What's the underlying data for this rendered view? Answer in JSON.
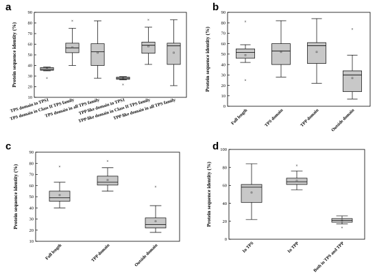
{
  "charts": [
    {
      "id": "a",
      "letter": "a",
      "type": "box",
      "ylabel": "Protein sequence identity (%)",
      "ylim": [
        10,
        90
      ],
      "yticks": [
        10,
        20,
        30,
        40,
        50,
        60,
        70,
        80,
        90
      ],
      "label_style": "rotated",
      "categories": [
        "TPS domain in TPS1",
        "TPS domain in Class II TPS family",
        "TPS domain in all TPS family",
        "TPP like domain in TPS1",
        "TPP like domain in Class II TPS family",
        "TPP like domain in all TPS family"
      ],
      "boxes": [
        {
          "q1": 35.5,
          "median": 36.5,
          "q3": 38,
          "min": 35,
          "max": 38.5,
          "mean": 37,
          "outliers": [
            28
          ]
        },
        {
          "q1": 52,
          "median": 56.5,
          "q3": 61,
          "min": 40,
          "max": 75,
          "mean": 57,
          "outliers": [
            82
          ]
        },
        {
          "q1": 40,
          "median": 53,
          "q3": 60.5,
          "min": 28,
          "max": 82,
          "mean": 52,
          "outliers": []
        },
        {
          "q1": 27,
          "median": 28,
          "q3": 29,
          "min": 26.5,
          "max": 29.5,
          "mean": 28,
          "outliers": [
            22
          ]
        },
        {
          "q1": 51.5,
          "median": 59,
          "q3": 62,
          "min": 41,
          "max": 76,
          "mean": 58,
          "outliers": [
            83
          ]
        },
        {
          "q1": 41,
          "median": 58.5,
          "q3": 61,
          "min": 21,
          "max": 83,
          "mean": 52,
          "outliers": []
        }
      ]
    },
    {
      "id": "b",
      "letter": "b",
      "type": "box",
      "ylabel": "Protein sequence identity (%)",
      "ylim": [
        0,
        90
      ],
      "yticks": [
        0,
        10,
        20,
        30,
        40,
        50,
        60,
        70,
        80,
        90
      ],
      "label_style": "angled",
      "categories": [
        "Full length",
        "TPS domain",
        "TPP domain",
        "Outside domain"
      ],
      "boxes": [
        {
          "q1": 46,
          "median": 51.5,
          "q3": 55,
          "min": 42,
          "max": 59,
          "mean": 49,
          "outliers": [
            81,
            25
          ]
        },
        {
          "q1": 40,
          "median": 53,
          "q3": 60,
          "min": 28,
          "max": 82,
          "mean": 52,
          "outliers": []
        },
        {
          "q1": 41,
          "median": 58,
          "q3": 61,
          "min": 22,
          "max": 84,
          "mean": 52,
          "outliers": []
        },
        {
          "q1": 14,
          "median": 30,
          "q3": 34,
          "min": 7,
          "max": 49,
          "mean": 27,
          "outliers": [
            74
          ]
        }
      ]
    },
    {
      "id": "c",
      "letter": "c",
      "type": "box",
      "ylabel": "Protein sequence identity (%)",
      "ylim": [
        10,
        90
      ],
      "yticks": [
        10,
        20,
        30,
        40,
        50,
        60,
        70,
        80,
        90
      ],
      "label_style": "angled",
      "categories": [
        "Full length",
        "TPP domain",
        "Outside domain"
      ],
      "boxes": [
        {
          "q1": 46,
          "median": 49,
          "q3": 55,
          "min": 40,
          "max": 63,
          "mean": 51.5,
          "outliers": [
            77
          ]
        },
        {
          "q1": 60.5,
          "median": 63,
          "q3": 68.5,
          "min": 55,
          "max": 76,
          "mean": 65,
          "outliers": [
            82
          ]
        },
        {
          "q1": 22,
          "median": 25,
          "q3": 31,
          "min": 18,
          "max": 42,
          "mean": 28,
          "outliers": [
            59
          ]
        }
      ]
    },
    {
      "id": "d",
      "letter": "d",
      "type": "box",
      "ylabel": "Protein sequence identity (%)",
      "ylim": [
        0,
        100
      ],
      "yticks": [
        0,
        20,
        40,
        60,
        80,
        100
      ],
      "label_style": "angled",
      "categories": [
        "In TPS",
        "In TPP",
        "Both in TPS and TPP"
      ],
      "boxes": [
        {
          "q1": 41,
          "median": 58,
          "q3": 61,
          "min": 22,
          "max": 84,
          "mean": 52,
          "outliers": []
        },
        {
          "q1": 61,
          "median": 64,
          "q3": 68,
          "min": 55,
          "max": 76,
          "mean": 65,
          "outliers": [
            82
          ]
        },
        {
          "q1": 19,
          "median": 21,
          "q3": 23,
          "min": 17,
          "max": 26,
          "mean": 21,
          "outliers": [
            13
          ]
        }
      ]
    }
  ]
}
